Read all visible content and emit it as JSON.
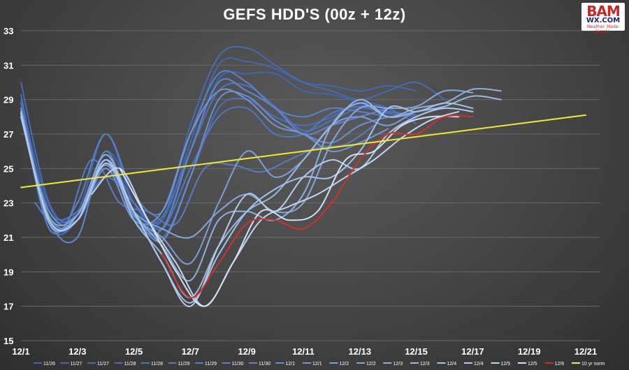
{
  "chart_data": {
    "type": "line",
    "title": "GEFS HDD'S (00z + 12z)",
    "xlabel": "",
    "ylabel": "",
    "x_tick_labels": [
      "12/1",
      "12/3",
      "12/5",
      "12/7",
      "12/9",
      "12/11",
      "12/13",
      "12/15",
      "12/17",
      "12/19",
      "12/21"
    ],
    "x_range": [
      0,
      20
    ],
    "ylim": [
      15,
      33
    ],
    "y_ticks": [
      15,
      17,
      19,
      21,
      23,
      25,
      27,
      29,
      31,
      33
    ],
    "grid": true,
    "legend_position": "bottom",
    "series": [
      {
        "name": "11/26",
        "color": "#3f66b0",
        "start": 0,
        "values": [
          29.0,
          22.8,
          22.3,
          26.0,
          23.5,
          21.5,
          26.0,
          30.2,
          30.5,
          30.5,
          29.5,
          29.3,
          28.8,
          28.0
        ]
      },
      {
        "name": "11/27",
        "color": "#4268b2",
        "start": 0,
        "values": [
          28.5,
          22.5,
          22.5,
          27.0,
          23.0,
          22.0,
          26.5,
          31.0,
          31.2,
          30.8,
          30.0,
          29.8,
          29.5,
          29.8,
          29.5
        ]
      },
      {
        "name": "11/27",
        "color": "#456bb5",
        "start": 0,
        "values": [
          30.0,
          23.0,
          22.0,
          25.0,
          22.5,
          22.0,
          27.5,
          31.5,
          32.0,
          31.0,
          30.0,
          29.5,
          29.0,
          29.5,
          30.0,
          29.0
        ]
      },
      {
        "name": "11/28",
        "color": "#4a70b9",
        "start": 0,
        "values": [
          29.3,
          21.8,
          22.0,
          25.5,
          23.0,
          21.0,
          24.5,
          28.5,
          29.0,
          28.0,
          27.5,
          28.0,
          28.8,
          28.5,
          27.6
        ]
      },
      {
        "name": "11/28",
        "color": "#4d73bc",
        "start": 0,
        "values": [
          28.8,
          22.0,
          22.0,
          25.8,
          22.2,
          22.2,
          26.0,
          29.5,
          29.8,
          28.6,
          27.2,
          27.8,
          28.5,
          28.2,
          28.0
        ]
      },
      {
        "name": "11/29",
        "color": "#5178bf",
        "start": 0,
        "values": [
          28.0,
          22.5,
          22.5,
          24.5,
          23.0,
          21.5,
          25.0,
          28.0,
          28.5,
          27.0,
          27.0,
          28.2,
          28.6,
          28.3,
          28.1
        ]
      },
      {
        "name": "11/29",
        "color": "#557dc3",
        "start": 0.5,
        "values": [
          23.0,
          21.5,
          25.5,
          23.0,
          22.5,
          21.8,
          25.0,
          25.2,
          24.8,
          25.5,
          26.2,
          26.4,
          27.5
        ]
      },
      {
        "name": "11/30",
        "color": "#5a82c7",
        "start": 0,
        "values": [
          28.5,
          21.5,
          23.0,
          27.0,
          23.5,
          22.5,
          27.0,
          30.5,
          30.0,
          28.5,
          28.0,
          28.5,
          28.3,
          28.0
        ]
      },
      {
        "name": "11/30",
        "color": "#5f87cb",
        "start": 0,
        "values": [
          28.2,
          22.0,
          21.0,
          26.0,
          22.0,
          21.5,
          26.0,
          30.0,
          29.5,
          28.5,
          27.0,
          27.5,
          28.0,
          28.5
        ]
      },
      {
        "name": "12/1",
        "color": "#6690cf",
        "start": 0,
        "values": [
          28.0,
          22.5,
          22.0,
          25.5,
          22.5,
          20.8,
          24.5,
          29.0,
          29.2,
          27.8,
          27.0,
          26.5,
          27.5,
          28.0
        ]
      },
      {
        "name": "12/1",
        "color": "#6e97d3",
        "start": 0,
        "values": [
          28.5,
          22.2,
          22.0,
          25.0,
          22.0,
          22.5,
          27.0,
          29.5,
          29.0,
          27.5,
          27.0,
          26.0,
          26.5,
          27.3
        ]
      },
      {
        "name": "12/2",
        "color": "#789fd7",
        "start": 0,
        "values": [
          28.2,
          22.0,
          22.0,
          25.5,
          22.3,
          21.0,
          19.5,
          23.0,
          26.0,
          24.5,
          25.5,
          27.5,
          28.0,
          27.5,
          28.3,
          28.5
        ]
      },
      {
        "name": "12/2",
        "color": "#83a7db",
        "start": 0,
        "values": [
          28.0,
          22.2,
          22.3,
          25.2,
          22.5,
          21.5,
          21.0,
          22.5,
          23.5,
          22.5,
          23.0,
          26.5,
          28.5,
          28.5,
          28.6,
          29.5,
          29.4
        ]
      },
      {
        "name": "12/3",
        "color": "#8eb0df",
        "start": 0,
        "values": [
          28.3,
          21.8,
          22.3,
          25.8,
          22.5,
          20.5,
          18.5,
          22.0,
          22.5,
          22.0,
          23.5,
          27.5,
          28.8,
          28.0,
          28.5,
          28.8,
          29.6,
          29.5
        ]
      },
      {
        "name": "12/3",
        "color": "#9ab8e3",
        "start": 0,
        "values": [
          28.0,
          22.0,
          22.0,
          25.5,
          22.0,
          20.0,
          17.5,
          20.5,
          22.5,
          23.5,
          25.5,
          27.5,
          29.0,
          28.0,
          28.3,
          28.6,
          29.2,
          29.0
        ]
      },
      {
        "name": "12/4",
        "color": "#a6c1e7",
        "start": 0,
        "values": [
          28.0,
          22.0,
          22.0,
          25.5,
          22.5,
          19.5,
          17.2,
          20.0,
          22.5,
          23.8,
          24.5,
          24.5,
          26.0,
          28.5,
          28.3,
          28.8,
          28.5
        ]
      },
      {
        "name": "12/4",
        "color": "#b3cbec",
        "start": 0,
        "values": [
          28.2,
          22.0,
          22.0,
          25.3,
          22.5,
          19.5,
          17.0,
          20.5,
          23.5,
          22.5,
          24.5,
          25.5,
          25.0,
          27.0,
          28.0,
          28.5,
          28.3
        ]
      },
      {
        "name": "12/5",
        "color": "#c2d5f0",
        "start": 2.5,
        "values": [
          23.5,
          25.0,
          22.0,
          19.5,
          17.0,
          19.5,
          22.0,
          22.8,
          23.5,
          24.5,
          25.5,
          26.8,
          27.8,
          28.3
        ]
      },
      {
        "name": "12/5",
        "color": "#d2e1f5",
        "start": 3.5,
        "values": [
          25.0,
          22.0,
          19.0,
          17.0,
          19.5,
          22.5,
          22.0,
          22.5,
          25.5,
          26.0,
          27.5,
          28.0,
          28.0
        ]
      },
      {
        "name": "12/6",
        "color": "#d32f2f",
        "start": 5,
        "values": [
          20.0,
          17.5,
          19.5,
          21.8,
          22.0,
          21.5,
          23.0,
          25.5,
          27.0,
          27.0,
          28.0,
          28.0
        ]
      },
      {
        "name": "10 yr norm",
        "color": "#f2ea2a",
        "start": 0,
        "values": [
          23.9,
          28.1
        ],
        "end": 20
      }
    ]
  }
}
